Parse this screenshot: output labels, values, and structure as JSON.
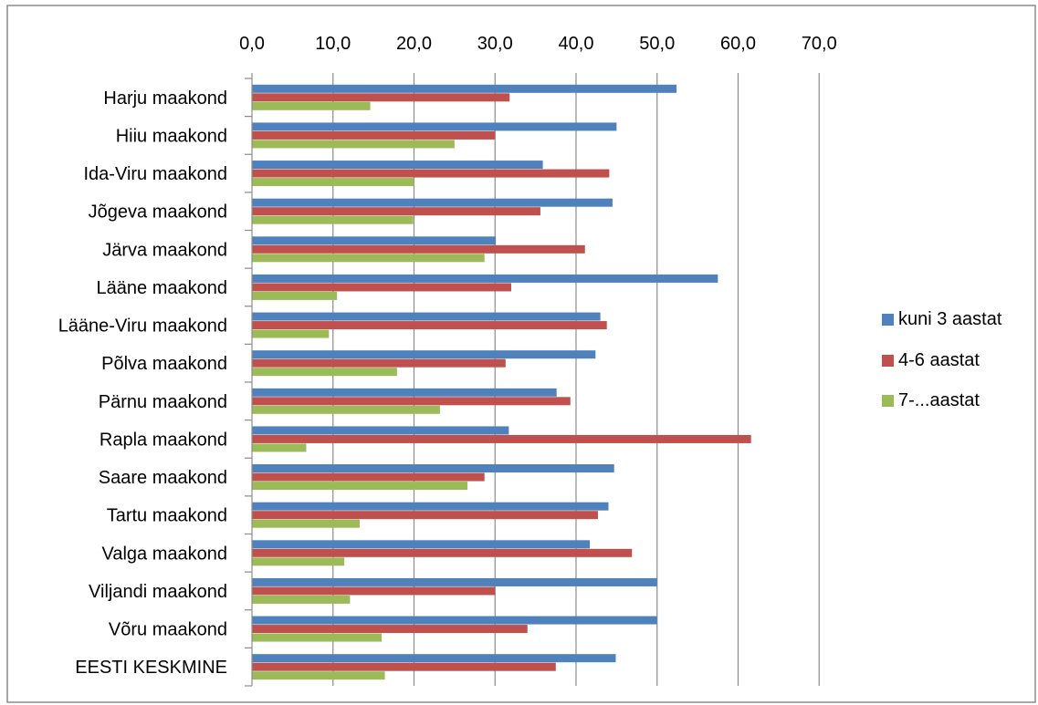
{
  "chart_data": {
    "type": "bar",
    "orientation": "horizontal",
    "title": "",
    "xlabel": "",
    "ylabel": "",
    "xlim": [
      0,
      70
    ],
    "x_ticks": [
      "0,0",
      "10,0",
      "20,0",
      "30,0",
      "40,0",
      "50,0",
      "60,0",
      "70,0"
    ],
    "x_axis_position": "top",
    "grid": true,
    "legend_position": "right",
    "categories": [
      "Harju maakond",
      "Hiiu maakond",
      "Ida-Viru maakond",
      "Jõgeva maakond",
      "Järva maakond",
      "Lääne maakond",
      "Lääne-Viru maakond",
      "Põlva maakond",
      "Pärnu maakond",
      "Rapla maakond",
      "Saare maakond",
      "Tartu maakond",
      "Valga maakond",
      "Viljandi maakond",
      "Võru maakond",
      "EESTI KESKMINE"
    ],
    "series": [
      {
        "name": "kuni 3 aastat",
        "color": "#4F81BD",
        "values": [
          52.4,
          45.0,
          35.9,
          44.5,
          30.1,
          57.5,
          43.0,
          42.4,
          37.6,
          31.7,
          44.7,
          44.0,
          41.7,
          50.0,
          50.0,
          44.9
        ]
      },
      {
        "name": "4-6 aastat",
        "color": "#C0504D",
        "values": [
          31.8,
          30.0,
          44.1,
          35.6,
          41.1,
          32.0,
          43.8,
          31.3,
          39.3,
          61.6,
          28.7,
          42.7,
          46.9,
          30.0,
          34.0,
          37.5
        ]
      },
      {
        "name": "7-...aastat",
        "color": "#9BBB59",
        "values": [
          14.6,
          25.0,
          20.0,
          19.9,
          28.7,
          10.5,
          9.5,
          17.9,
          23.2,
          6.7,
          26.6,
          13.3,
          11.4,
          12.1,
          16.0,
          16.4
        ]
      }
    ]
  }
}
